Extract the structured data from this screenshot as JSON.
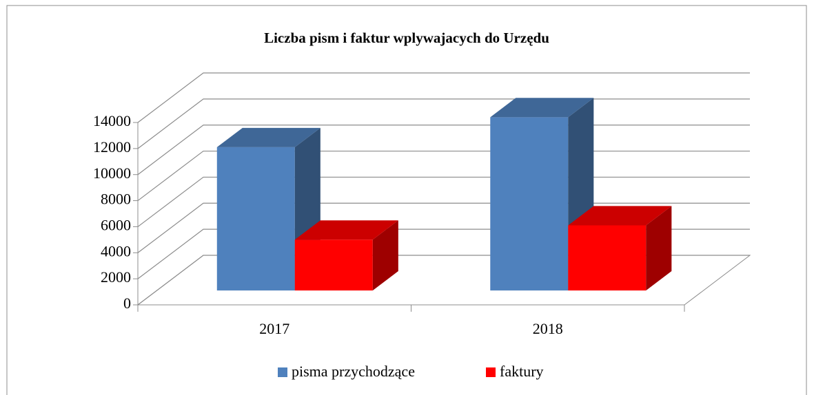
{
  "chart_data": {
    "type": "bar3d",
    "title": "Liczba pism i faktur  wplywajacych do Urzędu",
    "categories": [
      "2017",
      "2018"
    ],
    "series": [
      {
        "name": "pisma przychodzące",
        "color": "#4f81bd",
        "values": [
          11000,
          13300
        ]
      },
      {
        "name": "faktury",
        "color": "#ff0000",
        "values": [
          3900,
          5000
        ]
      }
    ],
    "ylim": [
      0,
      14000
    ],
    "yticks": [
      0,
      2000,
      4000,
      6000,
      8000,
      10000,
      12000,
      14000
    ],
    "grid": true,
    "legend": "bottom"
  }
}
